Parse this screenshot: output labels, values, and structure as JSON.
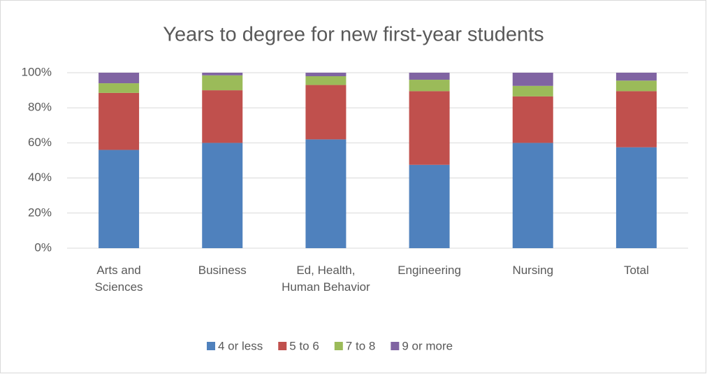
{
  "chart_data": {
    "type": "stacked_bar",
    "title": "Years to degree for new first-year students",
    "categories": [
      "Arts and Sciences",
      "Business",
      "Ed, Health, Human Behavior",
      "Engineering",
      "Nursing",
      "Total"
    ],
    "series": [
      {
        "name": "4 or less",
        "color": "#4f81bd",
        "values": [
          56,
          60,
          62,
          47.5,
          60,
          57.5
        ]
      },
      {
        "name": "5 to 6",
        "color": "#c0504d",
        "values": [
          32.5,
          30,
          31,
          42,
          26.5,
          32
        ]
      },
      {
        "name": "7 to 8",
        "color": "#9bbb59",
        "values": [
          5.5,
          8.5,
          5,
          6.5,
          6,
          6
        ]
      },
      {
        "name": "9 or more",
        "color": "#8064a2",
        "values": [
          6,
          1.5,
          2,
          4,
          7.5,
          4.5
        ]
      }
    ],
    "ylim": [
      0,
      100
    ],
    "yticks": [
      {
        "value": 0,
        "label": "0%"
      },
      {
        "value": 20,
        "label": "20%"
      },
      {
        "value": 40,
        "label": "40%"
      },
      {
        "value": 60,
        "label": "60%"
      },
      {
        "value": 80,
        "label": "80%"
      },
      {
        "value": 100,
        "label": "100%"
      }
    ],
    "grid": true,
    "legend": "bottom"
  }
}
